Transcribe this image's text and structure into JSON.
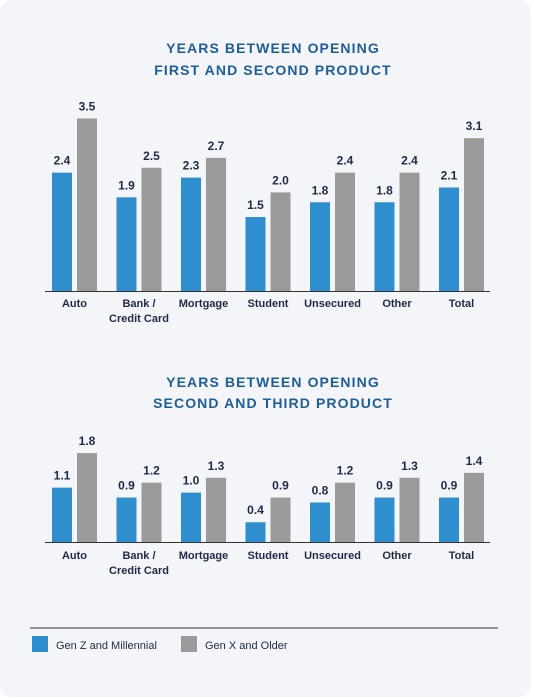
{
  "colors": {
    "series_a": "#2f8fce",
    "series_b": "#9a9a9a",
    "title": "#1f5d98",
    "text": "#1f2a44",
    "axis": "#333333"
  },
  "legend": {
    "items": [
      {
        "label": "Gen Z and Millennial"
      },
      {
        "label": "Gen X and Older"
      }
    ]
  },
  "chart_data": [
    {
      "type": "bar",
      "title_lines": [
        "YEARS BETWEEN OPENING",
        "FIRST AND SECOND PRODUCT"
      ],
      "categories": [
        [
          "Auto"
        ],
        [
          "Bank /",
          "Credit Card"
        ],
        [
          "Mortgage"
        ],
        [
          "Student"
        ],
        [
          "Unsecured"
        ],
        [
          "Other"
        ],
        [
          "Total"
        ]
      ],
      "series": [
        {
          "name": "Gen Z and Millennial",
          "values": [
            2.4,
            1.9,
            2.3,
            1.5,
            1.8,
            1.8,
            2.1
          ],
          "labels": [
            "2.4",
            "1.9",
            "2.3",
            "1.5",
            "1.8",
            "1.8",
            "2.1"
          ]
        },
        {
          "name": "Gen X and Older",
          "values": [
            3.5,
            2.5,
            2.7,
            2.0,
            2.4,
            2.4,
            3.1
          ],
          "labels": [
            "3.5",
            "2.5",
            "2.7",
            "2.0",
            "2.4",
            "2.4",
            "3.1"
          ]
        }
      ],
      "ylim": [
        0,
        3.5
      ]
    },
    {
      "type": "bar",
      "title_lines": [
        "YEARS BETWEEN OPENING",
        "SECOND AND THIRD PRODUCT"
      ],
      "categories": [
        [
          "Auto"
        ],
        [
          "Bank /",
          "Credit Card"
        ],
        [
          "Mortgage"
        ],
        [
          "Student"
        ],
        [
          "Unsecured"
        ],
        [
          "Other"
        ],
        [
          "Total"
        ]
      ],
      "series": [
        {
          "name": "Gen Z and Millennial",
          "values": [
            1.1,
            0.9,
            1.0,
            0.4,
            0.8,
            0.9,
            0.9
          ],
          "labels": [
            "1.1",
            "0.9",
            "1.0",
            "0.4",
            "0.8",
            "0.9",
            "0.9"
          ]
        },
        {
          "name": "Gen X and Older",
          "values": [
            1.8,
            1.2,
            1.3,
            0.9,
            1.2,
            1.3,
            1.4
          ],
          "labels": [
            "1.8",
            "1.2",
            "1.3",
            "0.9",
            "1.2",
            "1.3",
            "1.4"
          ]
        }
      ],
      "ylim": [
        0,
        1.8
      ]
    }
  ]
}
